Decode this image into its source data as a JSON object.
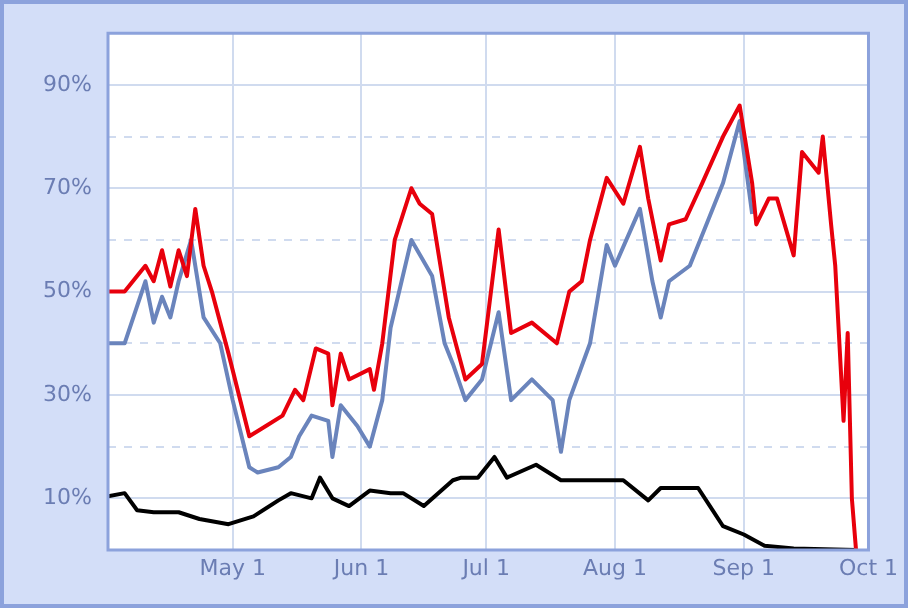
{
  "chart_data": {
    "type": "line",
    "xlim": [
      "--04-01",
      "--10-01"
    ],
    "xticks": [
      {
        "value": "--05-01",
        "label": "May 1"
      },
      {
        "value": "--06-01",
        "label": "Jun 1"
      },
      {
        "value": "--07-01",
        "label": "Jul 1"
      },
      {
        "value": "--08-01",
        "label": "Aug 1"
      },
      {
        "value": "--09-01",
        "label": "Sep 1"
      },
      {
        "value": "--10-01",
        "label": "Oct 1"
      }
    ],
    "ylim": [
      0,
      100
    ],
    "yticks": [
      {
        "value": 10,
        "label": "10%"
      },
      {
        "value": 20,
        "label": null
      },
      {
        "value": 30,
        "label": "30%"
      },
      {
        "value": 40,
        "label": null
      },
      {
        "value": 50,
        "label": "50%"
      },
      {
        "value": 60,
        "label": null
      },
      {
        "value": 70,
        "label": "70%"
      },
      {
        "value": 80,
        "label": null
      },
      {
        "value": 90,
        "label": "90%"
      }
    ],
    "grid": true,
    "legend": false,
    "marker": "none",
    "line_style": "solid",
    "series": [
      {
        "color": "#e8000c",
        "x": [
          "--04-01",
          "--04-05",
          "--04-08",
          "--04-10",
          "--04-12",
          "--04-14",
          "--04-16",
          "--04-18",
          "--04-20",
          "--04-22",
          "--04-24",
          "--04-26",
          "--04-30",
          "--05-05",
          "--05-09",
          "--05-13",
          "--05-16",
          "--05-18",
          "--05-21",
          "--05-24",
          "--05-25",
          "--05-27",
          "--05-29",
          "--06-03",
          "--06-04",
          "--06-06",
          "--06-09",
          "--06-13",
          "--06-15",
          "--06-18",
          "--06-20",
          "--06-22",
          "--06-26",
          "--06-30",
          "--07-04",
          "--07-07",
          "--07-12",
          "--07-18",
          "--07-21",
          "--07-24",
          "--07-26",
          "--07-30",
          "--08-03",
          "--08-07",
          "--08-09",
          "--08-12",
          "--08-14",
          "--08-18",
          "--08-22",
          "--08-27",
          "--08-31",
          "--09-03",
          "--09-04",
          "--09-07",
          "--09-09",
          "--09-13",
          "--09-15",
          "--09-19",
          "--09-20",
          "--09-22",
          "--09-23",
          "--09-25",
          "--09-26",
          "--09-27",
          "--09-28"
        ],
        "values": [
          50,
          50,
          53,
          55,
          52,
          58,
          51,
          58,
          53,
          66,
          55,
          50,
          38,
          22,
          24,
          26,
          31,
          29,
          39,
          38,
          28,
          38,
          33,
          35,
          31,
          40,
          60,
          70,
          67,
          65,
          55,
          45,
          33,
          36,
          62,
          42,
          44,
          40,
          50,
          52,
          60,
          72,
          67,
          78,
          68,
          56,
          63,
          64,
          71,
          80,
          86,
          71,
          63,
          68,
          68,
          57,
          77,
          73,
          80,
          63,
          55,
          25,
          42,
          10,
          0
        ]
      },
      {
        "color": "#6a84bc",
        "x": [
          "--04-01",
          "--04-05",
          "--04-10",
          "--04-12",
          "--04-14",
          "--04-16",
          "--04-18",
          "--04-21",
          "--04-24",
          "--04-28",
          "--05-01",
          "--05-05",
          "--05-07",
          "--05-12",
          "--05-15",
          "--05-17",
          "--05-20",
          "--05-24",
          "--05-25",
          "--05-27",
          "--05-31",
          "--06-03",
          "--06-06",
          "--06-08",
          "--06-13",
          "--06-18",
          "--06-21",
          "--06-23",
          "--06-26",
          "--06-30",
          "--07-04",
          "--07-07",
          "--07-12",
          "--07-17",
          "--07-19",
          "--07-21",
          "--07-26",
          "--07-30",
          "--08-01",
          "--08-07",
          "--08-10",
          "--08-12",
          "--08-14",
          "--08-19",
          "--08-23",
          "--08-27",
          "--08-31",
          "--09-03"
        ],
        "values": [
          40,
          40,
          52,
          44,
          49,
          45,
          52,
          60,
          45,
          40,
          29,
          16,
          15,
          16,
          18,
          22,
          26,
          25,
          18,
          28,
          24,
          20,
          29,
          43,
          60,
          53,
          40,
          36,
          29,
          33,
          46,
          29,
          33,
          29,
          19,
          29,
          40,
          59,
          55,
          66,
          52,
          45,
          52,
          55,
          63,
          71,
          83,
          65
        ]
      },
      {
        "color": "#000000",
        "x": [
          "--04-01",
          "--04-05",
          "--04-08",
          "--04-12",
          "--04-18",
          "--04-23",
          "--04-30",
          "--05-06",
          "--05-12",
          "--05-15",
          "--05-20",
          "--05-22",
          "--05-25",
          "--05-29",
          "--06-03",
          "--06-08",
          "--06-11",
          "--06-16",
          "--06-23",
          "--06-25",
          "--06-29",
          "--07-03",
          "--07-06",
          "--07-13",
          "--07-19",
          "--07-29",
          "--08-03",
          "--08-09",
          "--08-12",
          "--08-21",
          "--08-27",
          "--09-01",
          "--09-06",
          "--09-13",
          "--09-28"
        ],
        "values": [
          10.4,
          11,
          7.7,
          7.3,
          7.3,
          6,
          5,
          6.5,
          9.6,
          11,
          10,
          14,
          10,
          8.5,
          11.5,
          11,
          11,
          8.5,
          13.5,
          14,
          14,
          18,
          14,
          16.5,
          13.5,
          13.5,
          13.5,
          9.6,
          12,
          12,
          4.6,
          3,
          0.8,
          0.3,
          0
        ]
      }
    ]
  }
}
